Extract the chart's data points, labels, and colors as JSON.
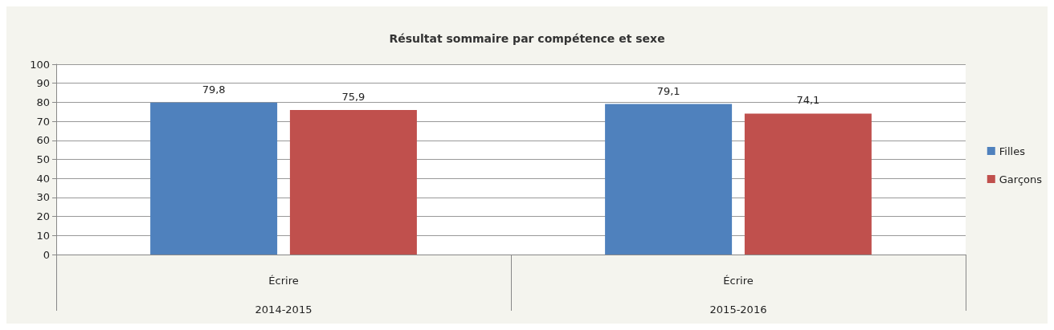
{
  "chart_data": {
    "type": "bar",
    "title": "Résultat sommaire par compétence et sexe",
    "categories": [
      "Écrire\n2014-2015",
      "Écrire\n2015-2016"
    ],
    "series": [
      {
        "name": "Filles",
        "color": "#4f81bd",
        "values": [
          79.8,
          79.1
        ],
        "value_labels": [
          "79,8",
          "79,1"
        ]
      },
      {
        "name": "Garçons",
        "color": "#c0504d",
        "values": [
          75.9,
          74.1
        ],
        "value_labels": [
          "75,9",
          "74,1"
        ]
      }
    ],
    "ylim": [
      0,
      100
    ],
    "yticks": [
      0,
      10,
      20,
      30,
      40,
      50,
      60,
      70,
      80,
      90,
      100
    ],
    "grid": "y",
    "legend": "right"
  }
}
